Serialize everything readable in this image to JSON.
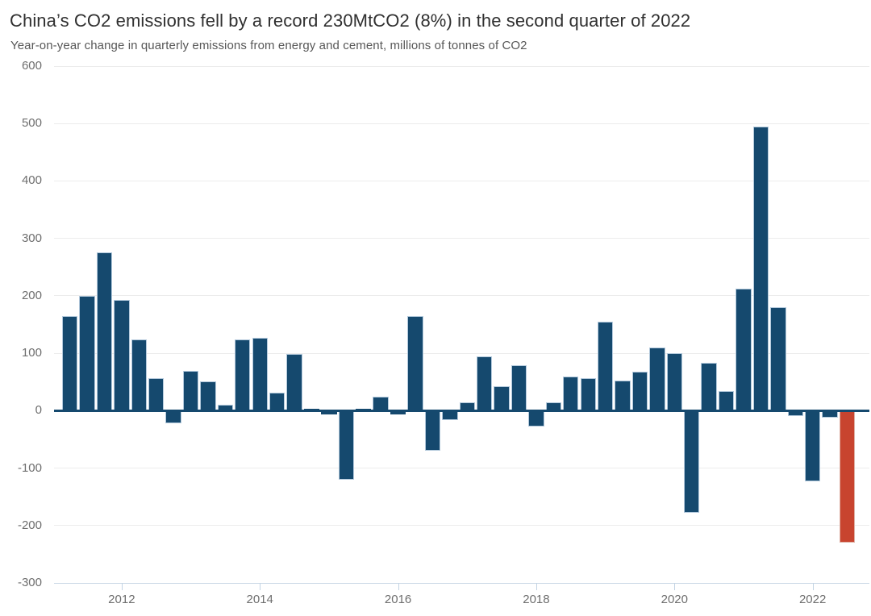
{
  "header": {
    "title": "China’s CO2 emissions fell by a record 230MtCO2 (8%) in the second quarter of 2022",
    "subtitle": "Year-on-year change in quarterly emissions from energy and cement, millions of tonnes of CO2"
  },
  "chart_data": {
    "type": "bar",
    "title": "China’s CO2 emissions fell by a record 230MtCO2 (8%) in the second quarter of 2022",
    "subtitle": "Year-on-year change in quarterly emissions from energy and cement, millions of tonnes of CO2",
    "unit": "MtCO2 year-on-year change",
    "categories": [
      "2011 Q1",
      "2011 Q2",
      "2011 Q3",
      "2011 Q4",
      "2012 Q1",
      "2012 Q2",
      "2012 Q3",
      "2012 Q4",
      "2013 Q1",
      "2013 Q2",
      "2013 Q3",
      "2013 Q4",
      "2014 Q1",
      "2014 Q2",
      "2014 Q3",
      "2014 Q4",
      "2015 Q1",
      "2015 Q2",
      "2015 Q3",
      "2015 Q4",
      "2016 Q1",
      "2016 Q2",
      "2016 Q3",
      "2016 Q4",
      "2017 Q1",
      "2017 Q2",
      "2017 Q3",
      "2017 Q4",
      "2018 Q1",
      "2018 Q2",
      "2018 Q3",
      "2018 Q4",
      "2019 Q1",
      "2019 Q2",
      "2019 Q3",
      "2019 Q4",
      "2020 Q1",
      "2020 Q2",
      "2020 Q3",
      "2020 Q4",
      "2021 Q1",
      "2021 Q2",
      "2021 Q3",
      "2021 Q4",
      "2022 Q1",
      "2022 Q2"
    ],
    "values": [
      165,
      200,
      275,
      193,
      124,
      56,
      -22,
      69,
      51,
      10,
      124,
      127,
      31,
      99,
      3,
      -6,
      -120,
      3,
      24,
      -6,
      165,
      -70,
      -17,
      15,
      94,
      42,
      79,
      -27,
      15,
      59,
      57,
      155,
      52,
      68,
      110,
      100,
      -178,
      84,
      34,
      212,
      495,
      180,
      -9,
      -123,
      -12,
      -230
    ],
    "highlight": {
      "index": 45,
      "category": "2022 Q2",
      "value": -230,
      "color": "#C8442F"
    },
    "bar_color": "#15496E",
    "xlabel": "",
    "ylabel": "",
    "ylim": [
      -300,
      600
    ],
    "yticks": [
      600,
      500,
      400,
      300,
      200,
      100,
      0,
      -100,
      -200,
      -300
    ],
    "xticks": [
      {
        "label": "2012",
        "bar_index": 3
      },
      {
        "label": "2014",
        "bar_index": 11
      },
      {
        "label": "2016",
        "bar_index": 19
      },
      {
        "label": "2018",
        "bar_index": 27
      },
      {
        "label": "2020",
        "bar_index": 35
      },
      {
        "label": "2022",
        "bar_index": 43
      }
    ],
    "grid": true,
    "legend": false
  },
  "colors": {
    "background": "#ffffff",
    "grid": "#ececec",
    "axis_line": "#cbd9e6",
    "tick_mark": "#c3d4e4",
    "zero_line": "#15496E",
    "title_text": "#303030",
    "subtitle_text": "#575757",
    "tick_label_text": "#6e6e6e"
  }
}
